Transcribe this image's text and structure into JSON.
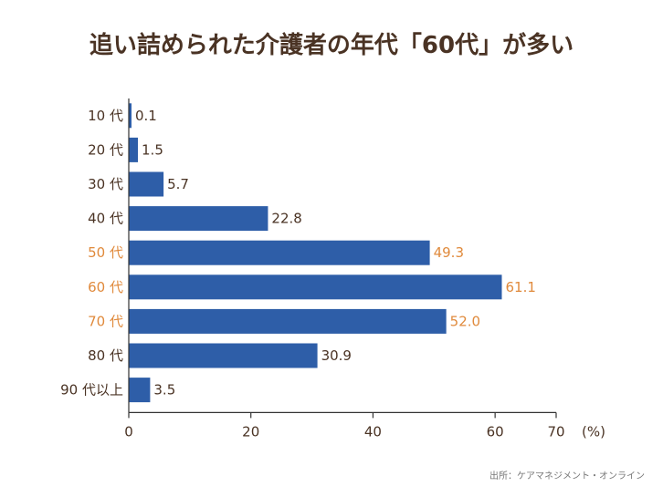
{
  "chart_data": {
    "type": "bar",
    "orientation": "horizontal",
    "title": "追い詰められた介護者の年代「60代」が多い",
    "categories": [
      "10 代",
      "20 代",
      "30 代",
      "40 代",
      "50 代",
      "60 代",
      "70 代",
      "80 代",
      "90 代以上"
    ],
    "values": [
      0.1,
      1.5,
      5.7,
      22.8,
      49.3,
      61.1,
      52.0,
      30.9,
      3.5
    ],
    "value_labels": [
      "0.1",
      "1.5",
      "5.7",
      "22.8",
      "49.3",
      "61.1",
      "52.0",
      "30.9",
      "3.5"
    ],
    "highlight": [
      false,
      false,
      false,
      false,
      true,
      true,
      true,
      false,
      false
    ],
    "xlim": [
      0,
      70
    ],
    "xticks": [
      "0",
      "20",
      "40",
      "60",
      "70"
    ],
    "xtick_values": [
      0,
      20,
      40,
      60,
      70
    ],
    "unit_label": "(%)",
    "source": "出所：ケアマネジメント・オンライン",
    "colors": {
      "bar": "#2e5ea8",
      "text": "#4a3324",
      "highlight": "#e08a3c",
      "axis": "#333333"
    }
  }
}
